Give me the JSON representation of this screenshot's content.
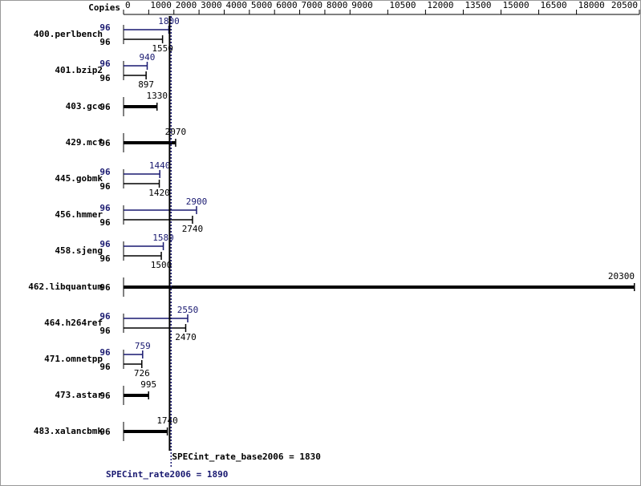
{
  "chart_data": {
    "type": "bar",
    "copies_header": "Copies",
    "categories": [
      "400.perlbench",
      "401.bzip2",
      "403.gcc",
      "429.mcf",
      "445.gobmk",
      "456.hmmer",
      "458.sjeng",
      "462.libquantum",
      "464.h264ref",
      "471.omnetpp",
      "473.astar",
      "483.xalancbmk"
    ],
    "series": [
      {
        "color": "#000000",
        "copies": [
          96,
          96,
          96,
          96,
          96,
          96,
          96,
          96,
          96,
          96,
          96,
          96
        ],
        "values": [
          1550,
          897,
          1330,
          2070,
          1420,
          2740,
          1500,
          20300,
          2470,
          726,
          995,
          1740
        ]
      },
      {
        "color": "#191970",
        "copies": [
          96,
          96,
          null,
          null,
          96,
          96,
          96,
          null,
          96,
          96,
          null,
          null
        ],
        "values": [
          1800,
          940,
          null,
          null,
          1440,
          2900,
          1580,
          null,
          2550,
          759,
          null,
          null
        ]
      }
    ],
    "xlim": [
      0,
      20500
    ],
    "xticks": [
      0,
      1000,
      2000,
      3000,
      4000,
      5000,
      6000,
      7000,
      8000,
      9000,
      10500,
      12000,
      13500,
      15000,
      16500,
      18000,
      20500
    ],
    "reference_lines": [
      {
        "label": "SPECint_rate_base2006 = 1830",
        "value": 1830,
        "color": "#000000"
      },
      {
        "label": "SPECint_rate2006 = 1890",
        "value": 1890,
        "color": "#191970"
      }
    ]
  }
}
